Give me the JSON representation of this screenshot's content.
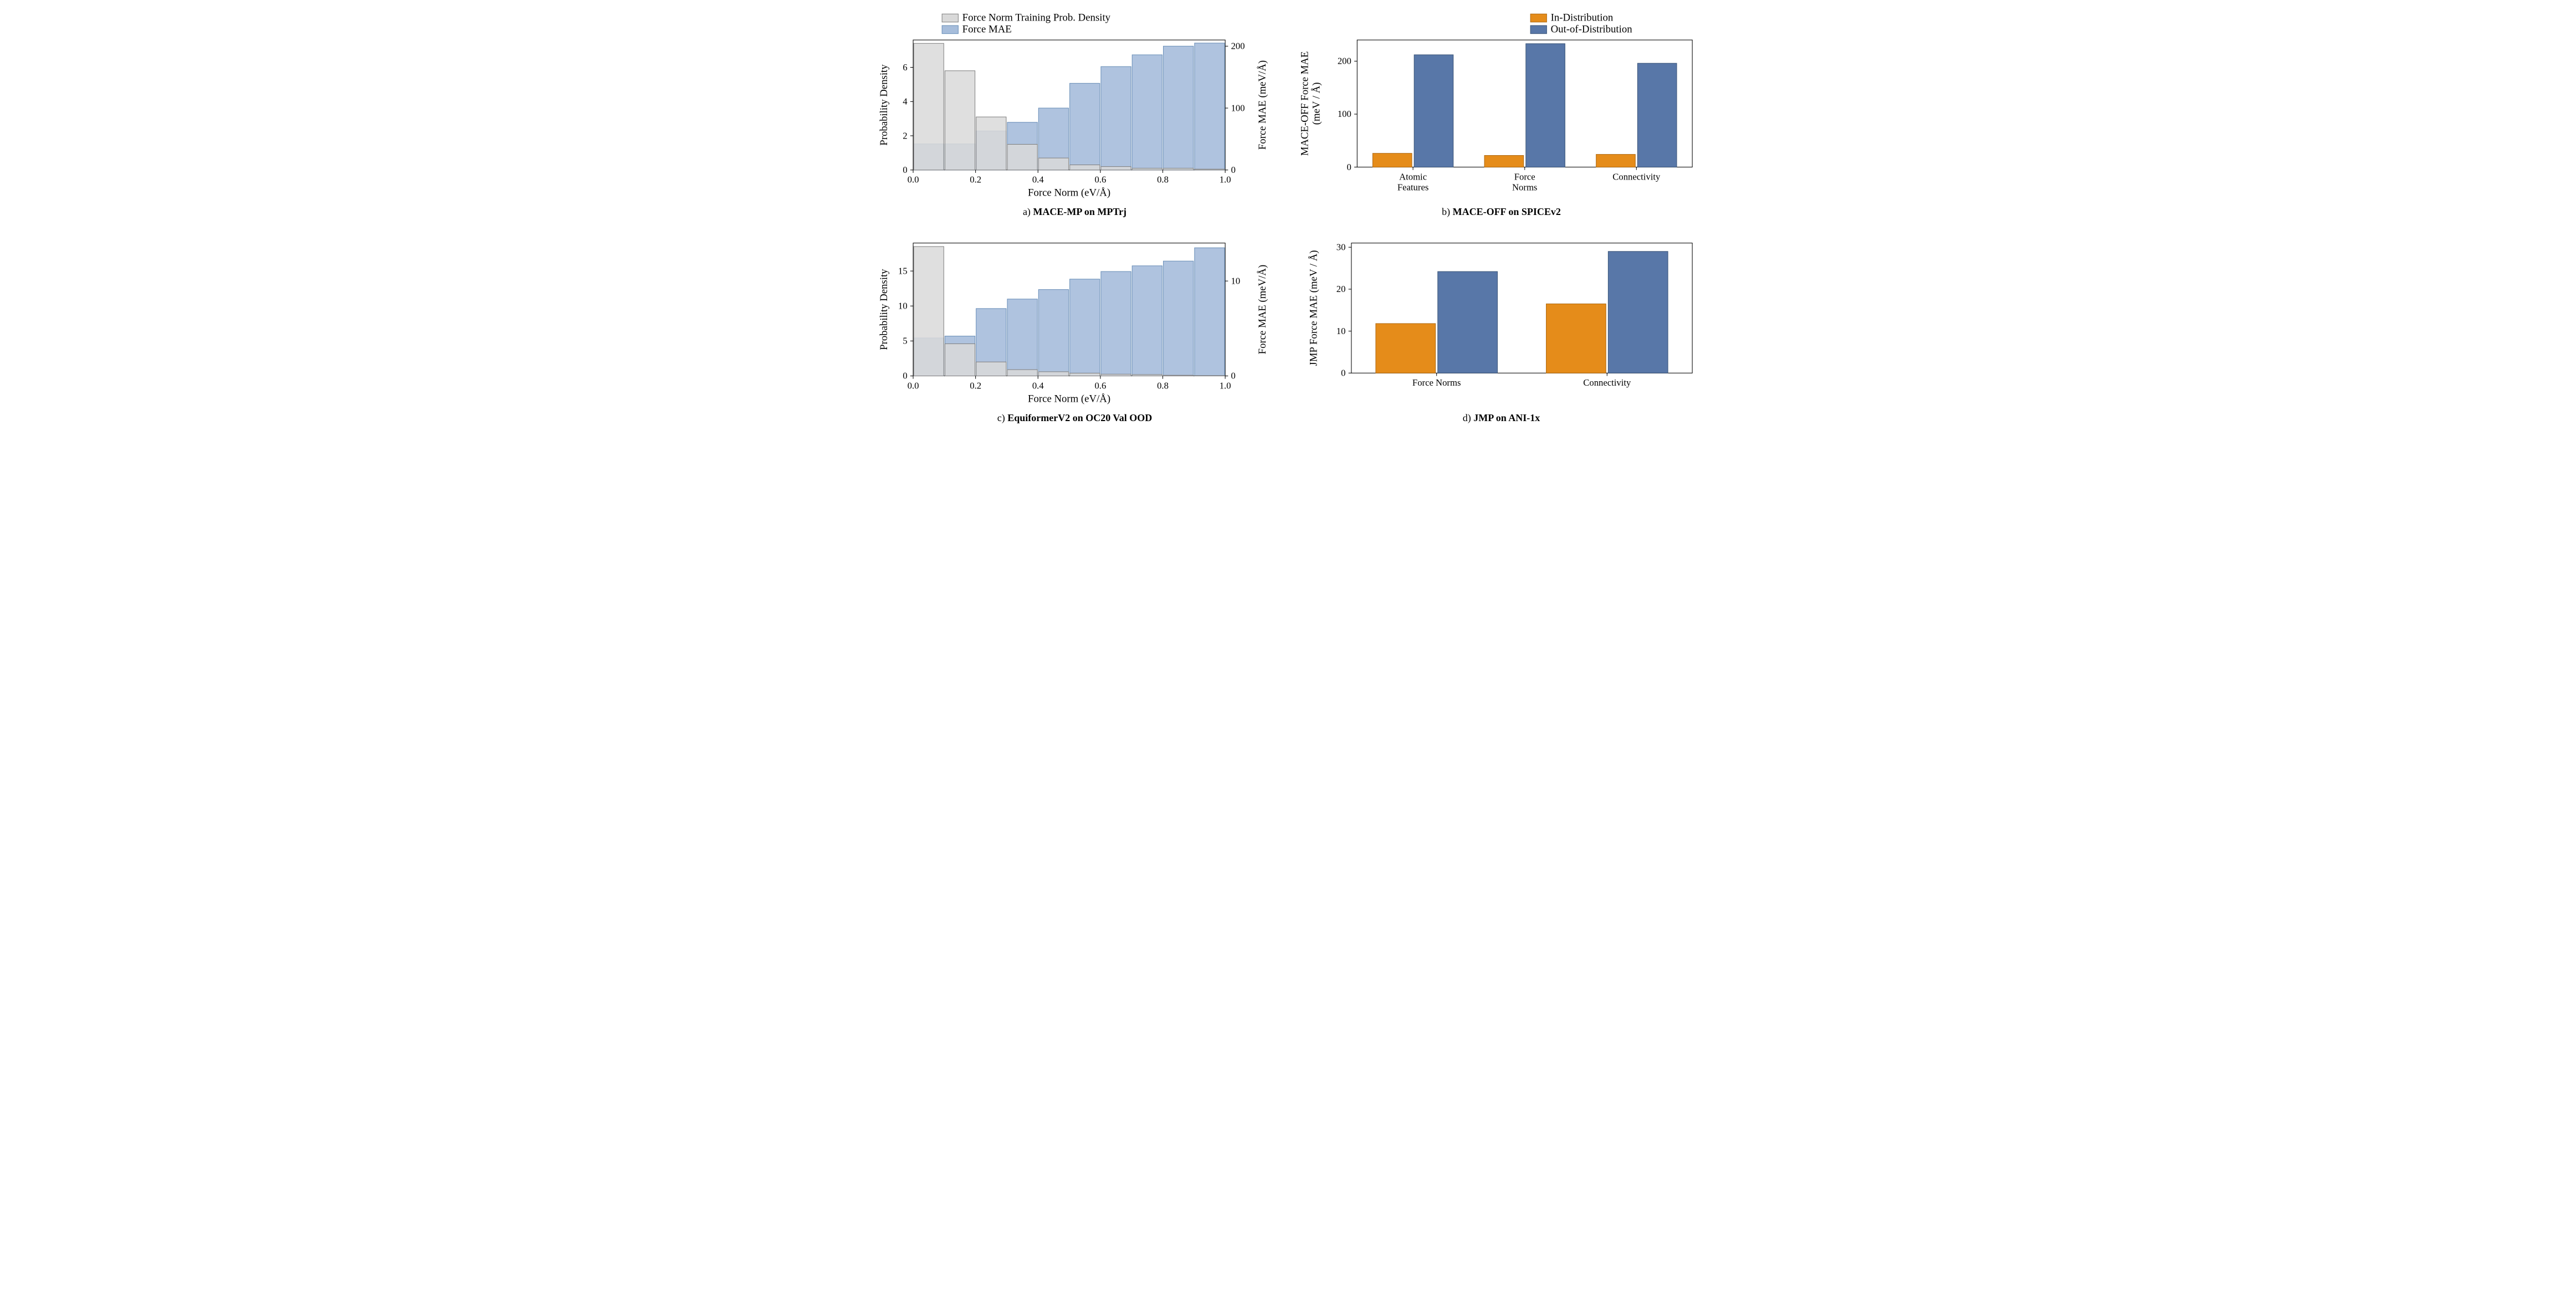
{
  "colors": {
    "density_fill": "#d9d9d9",
    "density_stroke": "#808080",
    "mae_fill": "#a6bddb",
    "mae_stroke": "#6a8fb8",
    "in_fill": "#e58c1a",
    "in_stroke": "#b06a12",
    "out_fill": "#5877a8",
    "out_stroke": "#3a5578",
    "background": "#ffffff",
    "axis": "#000000"
  },
  "panel_a": {
    "caption_prefix": "a) ",
    "caption_bold": "MACE-MP on MPTrj",
    "type": "dual-axis-bar-histogram",
    "x_label": "Force Norm (eV/Å)",
    "y_left_label": "Probability Density",
    "y_right_label": "Force MAE (meV/Å)",
    "x_ticks": [
      0.0,
      0.2,
      0.4,
      0.6,
      0.8,
      1.0
    ],
    "x_tick_labels": [
      "0.0",
      "0.2",
      "0.4",
      "0.6",
      "0.8",
      "1.0"
    ],
    "y_left_ticks": [
      0,
      2,
      4,
      6
    ],
    "y_left_lim": [
      0,
      7.6
    ],
    "y_right_ticks": [
      0,
      100,
      200
    ],
    "y_right_lim": [
      0,
      210
    ],
    "bin_edges": [
      0.0,
      0.1,
      0.2,
      0.3,
      0.4,
      0.5,
      0.6,
      0.7,
      0.8,
      0.9,
      1.0
    ],
    "density_values": [
      7.4,
      5.8,
      3.1,
      1.5,
      0.7,
      0.3,
      0.2,
      0.1,
      0.1,
      0.05
    ],
    "mae_values": [
      42,
      42,
      63,
      77,
      100,
      140,
      167,
      186,
      200,
      205
    ],
    "legend": {
      "density": "Force Norm Training Prob. Density",
      "mae": "Force MAE"
    }
  },
  "panel_b": {
    "caption_prefix": "b) ",
    "caption_bold": "MACE-OFF on SPICEv2",
    "type": "grouped-bar",
    "y_label": "MACE-OFF Force MAE\n(meV / Å)",
    "y_ticks": [
      0,
      100,
      200
    ],
    "y_lim": [
      0,
      240
    ],
    "categories": [
      "Atomic\nFeatures",
      "Force\nNorms",
      "Connectivity"
    ],
    "in_values": [
      26,
      22,
      24
    ],
    "out_values": [
      212,
      233,
      196
    ],
    "bar_width": 0.35,
    "legend": {
      "in": "In-Distribution",
      "out": "Out-of-Distribution"
    }
  },
  "panel_c": {
    "caption_prefix": "c) ",
    "caption_bold": "EquiformerV2 on OC20 Val OOD",
    "type": "dual-axis-bar-histogram",
    "x_label": "Force Norm (eV/Å)",
    "y_left_label": "Probability Density",
    "y_right_label": "Force MAE (meV/Å)",
    "x_ticks": [
      0.0,
      0.2,
      0.4,
      0.6,
      0.8,
      1.0
    ],
    "x_tick_labels": [
      "0.0",
      "0.2",
      "0.4",
      "0.6",
      "0.8",
      "1.0"
    ],
    "y_left_ticks": [
      0,
      5,
      10,
      15
    ],
    "y_left_lim": [
      0,
      19
    ],
    "y_right_ticks": [
      0,
      10
    ],
    "y_right_lim": [
      0,
      14
    ],
    "bin_edges": [
      0.0,
      0.1,
      0.2,
      0.3,
      0.4,
      0.5,
      0.6,
      0.7,
      0.8,
      0.9,
      1.0
    ],
    "density_values": [
      18.5,
      4.6,
      2.0,
      0.9,
      0.6,
      0.4,
      0.25,
      0.2,
      0.1,
      0.05
    ],
    "mae_values": [
      4.0,
      4.2,
      7.1,
      8.1,
      9.1,
      10.2,
      11.0,
      11.6,
      12.1,
      13.5
    ],
    "legend": null
  },
  "panel_d": {
    "caption_prefix": "d) ",
    "caption_bold": "JMP on ANI-1x",
    "type": "grouped-bar",
    "y_label": "JMP Force MAE (meV / Å)",
    "y_ticks": [
      0,
      10,
      20,
      30
    ],
    "y_lim": [
      0,
      31
    ],
    "categories": [
      "Force Norms",
      "Connectivity"
    ],
    "in_values": [
      11.8,
      16.5
    ],
    "out_values": [
      24.2,
      29.0
    ],
    "bar_width": 0.35,
    "legend": null
  }
}
